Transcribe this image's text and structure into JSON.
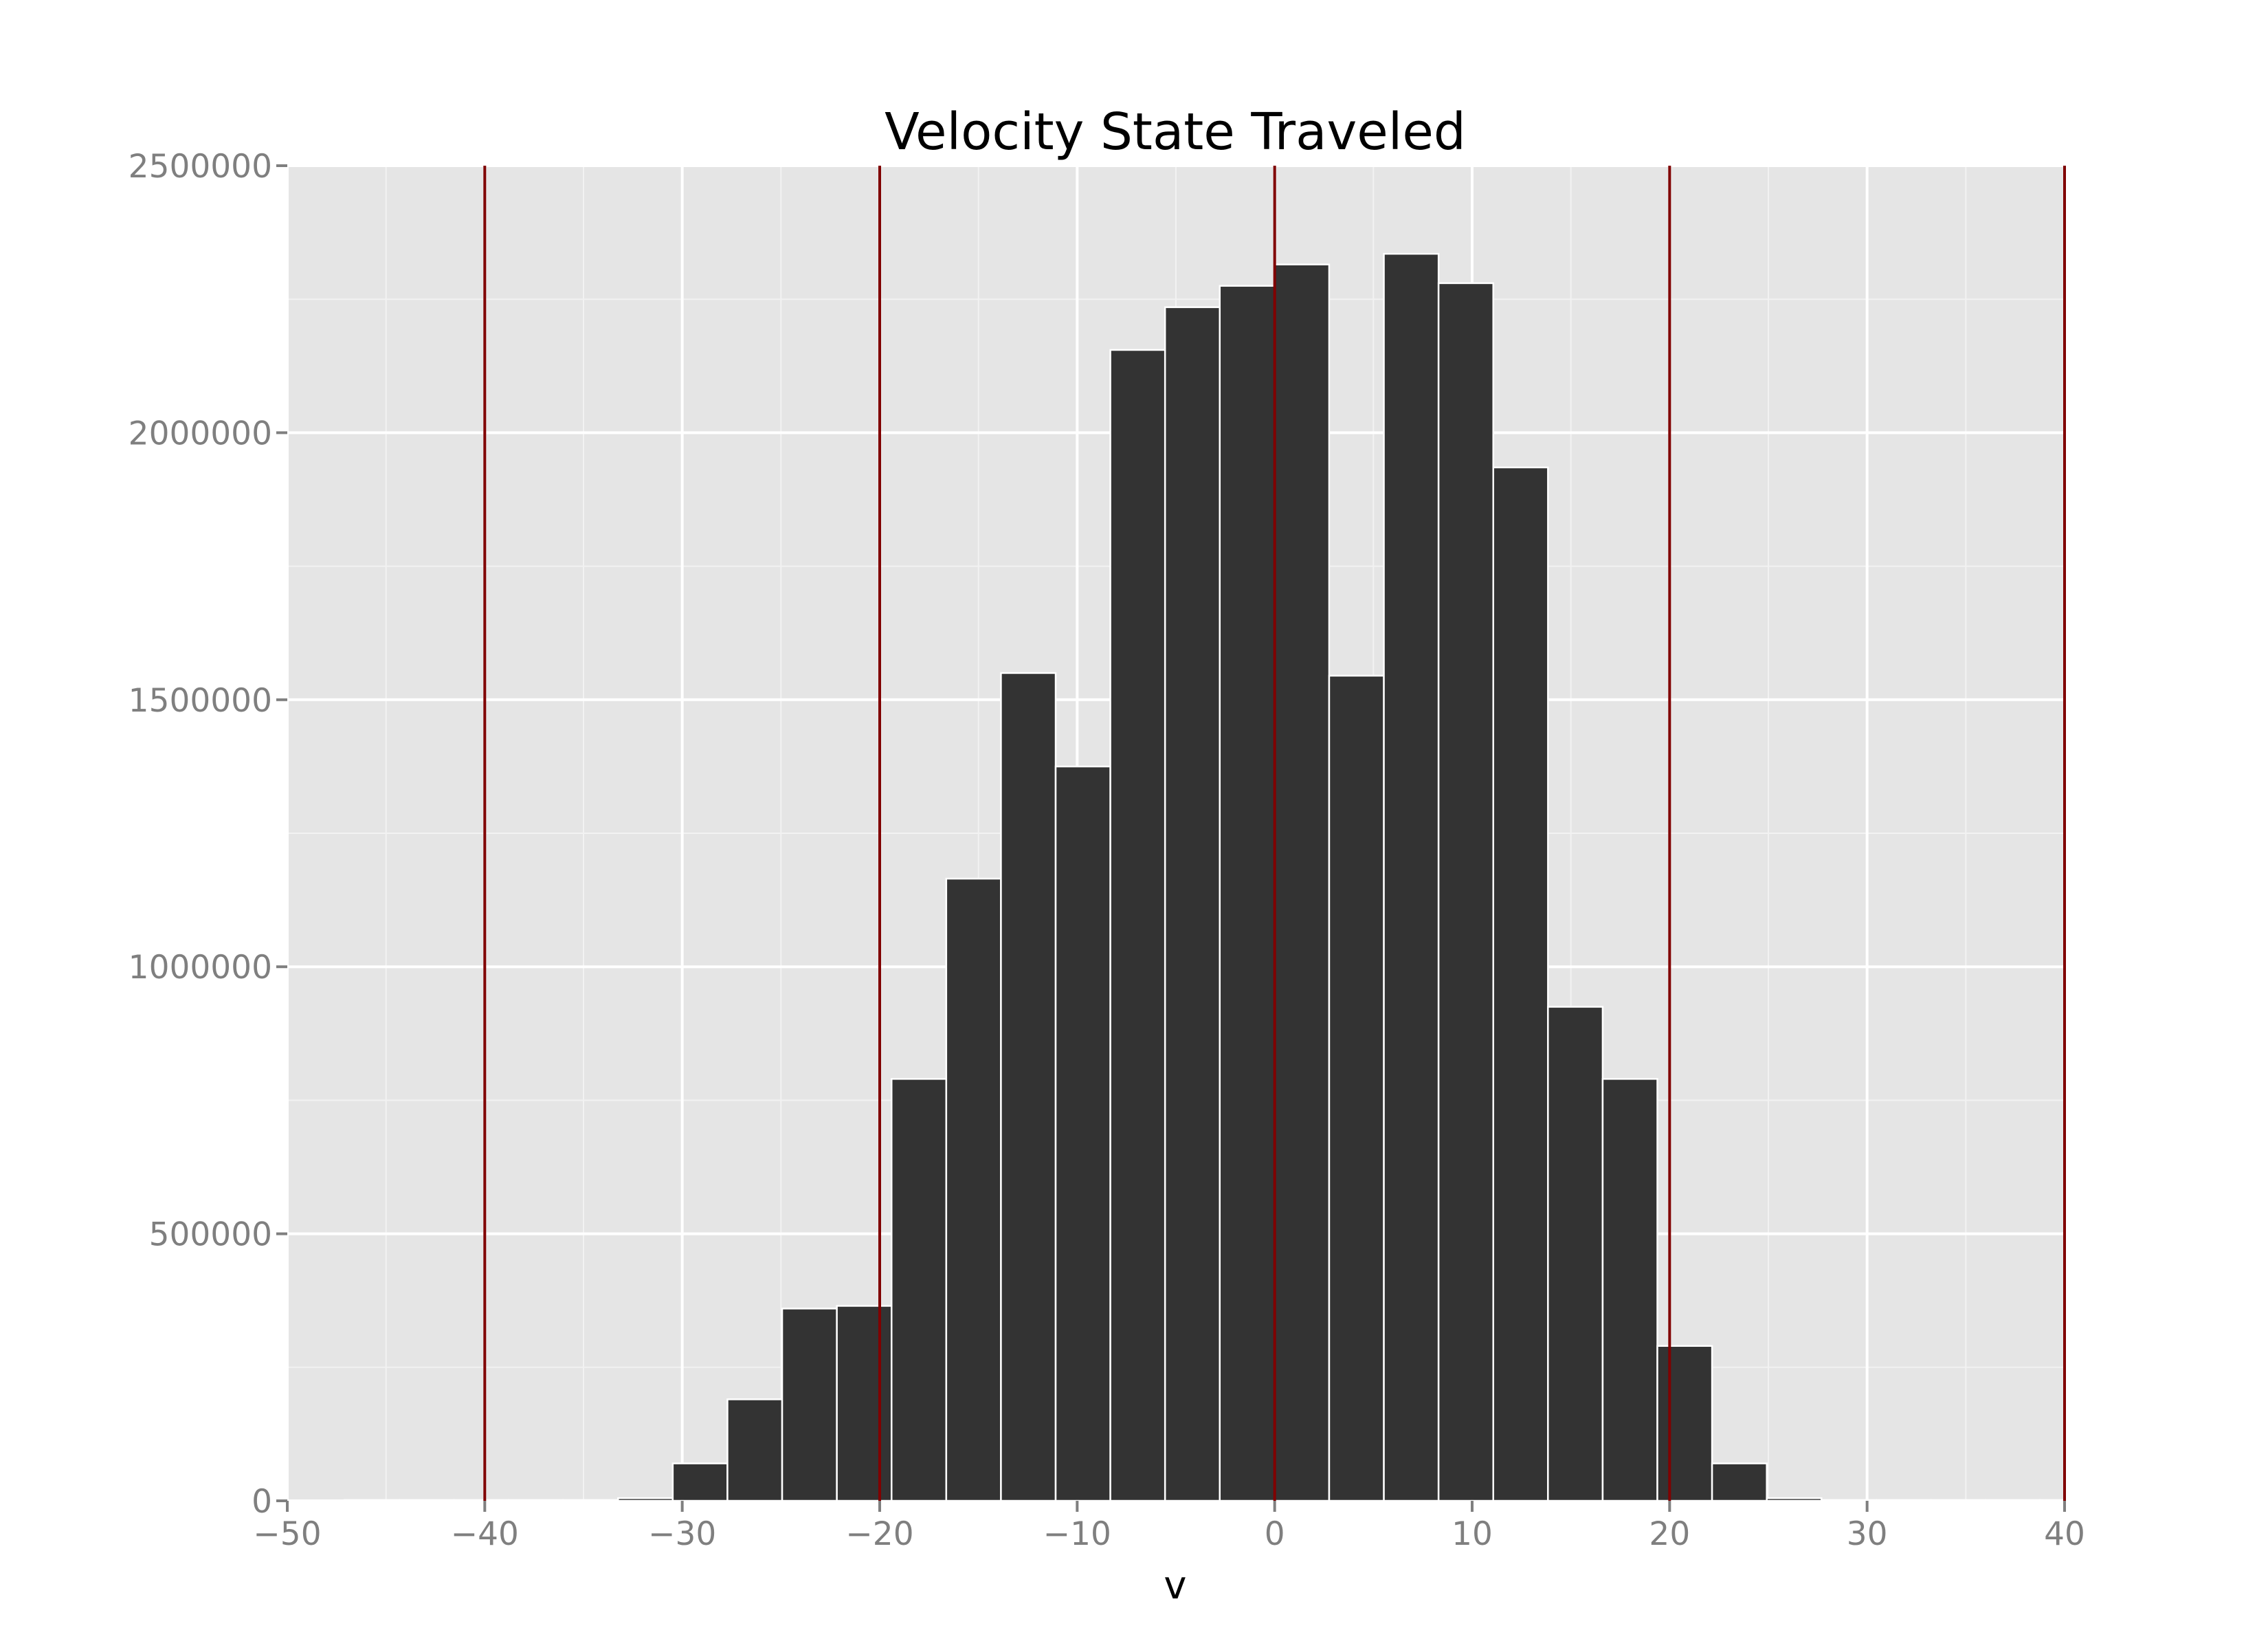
{
  "chart_data": {
    "type": "bar",
    "title": "Velocity State Traveled",
    "xlabel": "v",
    "ylabel": "",
    "xlim": [
      -50,
      40
    ],
    "ylim": [
      0,
      2500000
    ],
    "x_ticks": [
      -50,
      -40,
      -30,
      -20,
      -10,
      0,
      10,
      20,
      30,
      40
    ],
    "x_tick_labels": [
      "−50",
      "−40",
      "−30",
      "−20",
      "−10",
      "0",
      "10",
      "20",
      "30",
      "40"
    ],
    "y_ticks": [
      0,
      500000,
      1000000,
      1500000,
      2000000,
      2500000
    ],
    "y_tick_labels": [
      "0",
      "500000",
      "1000000",
      "1500000",
      "2000000",
      "2500000"
    ],
    "grid": true,
    "bin_width": 2.77,
    "bin_edges_start": -47.1,
    "values": [
      0,
      0,
      0,
      0,
      0,
      5000,
      70000,
      190000,
      360000,
      365000,
      790000,
      1165000,
      1550000,
      1375000,
      2155000,
      2235000,
      2275000,
      2315000,
      1545000,
      2335000,
      2280000,
      1935000,
      925000,
      790000,
      290000,
      70000,
      5000,
      0,
      0,
      0,
      0,
      0
    ],
    "reference_lines_x": [
      -40,
      -20,
      0,
      20,
      40
    ],
    "colors": {
      "bar_fill": "#333333",
      "bar_edge": "#ffffff",
      "panel_background": "#e5e5e5",
      "major_grid": "#ffffff",
      "minor_grid": "#f2f2f2",
      "reference_line": "#800000",
      "tick_text": "#7f7f7f",
      "title_text": "#000000"
    }
  }
}
